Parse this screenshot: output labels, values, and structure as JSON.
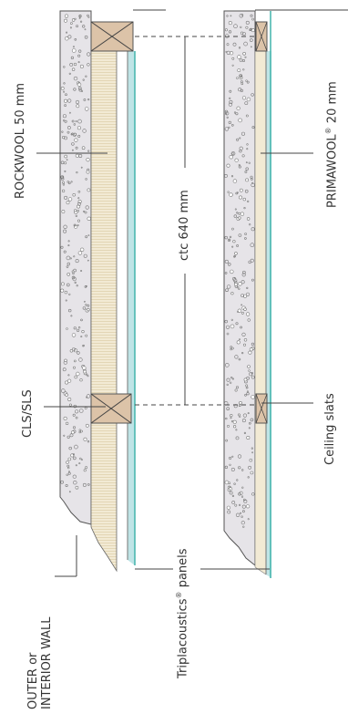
{
  "labels": {
    "rockwool": "ROCKWOOL 50 mm",
    "primawool_name": "PRIMAWOOL",
    "primawool_mark": "®",
    "primawool_thickness": " 20 mm",
    "ctc": "ctc 640 mm",
    "cls_sls": "CLS/SLS",
    "ceiling_slats": "Ceiling slats",
    "triplacoustics_name": "Triplacoustics",
    "triplacoustics_mark": "®",
    "triplacoustics_suffix": " panels",
    "wall_line1": "OUTER or",
    "wall_line2": "INTERIOR WALL"
  },
  "colors": {
    "concrete": "#e6e4e8",
    "insulation": "#f2ead4",
    "timber": "#dcc3a8",
    "panel_edge": "#4cb8b0",
    "panel_face": "#bfe4e6",
    "line": "#444444"
  }
}
